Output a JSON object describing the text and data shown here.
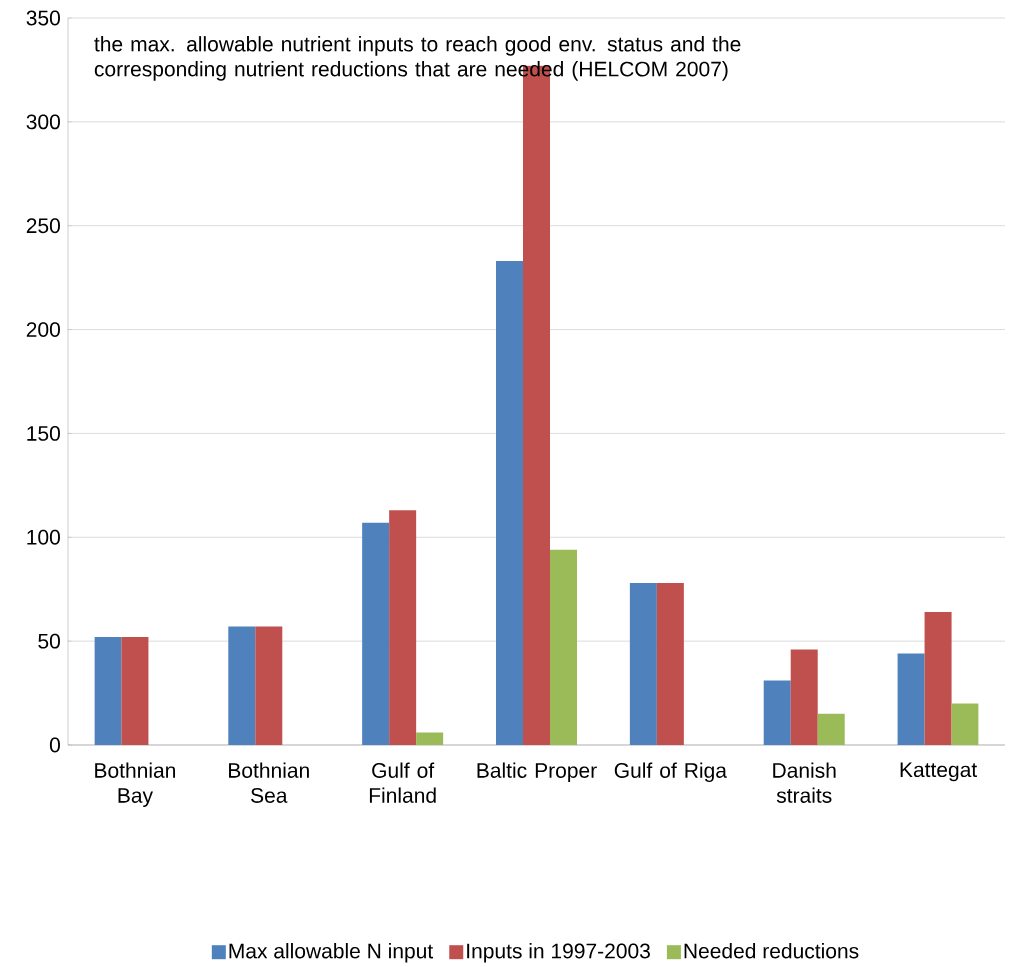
{
  "chart_data": {
    "type": "bar",
    "annotations": [
      "the max. allowable nutrient inputs to reach good env. status and the corresponding nutrient reductions that are needed (HELCOM 2007)"
    ],
    "categories": [
      "Bothnian Bay",
      "Bothnian Sea",
      "Gulf of Finland",
      "Baltic Proper",
      "Gulf of Riga",
      "Danish straits",
      "Kattegat"
    ],
    "series": [
      {
        "name": "Max allowable N input",
        "color": "#4f81bd",
        "values": [
          52,
          57,
          107,
          233,
          78,
          31,
          44
        ]
      },
      {
        "name": "Inputs in 1997-2003",
        "color": "#c0504d",
        "values": [
          52,
          57,
          113,
          327,
          78,
          46,
          64
        ]
      },
      {
        "name": "Needed reductions",
        "color": "#9bbb59",
        "values": [
          0,
          0,
          6,
          94,
          0,
          15,
          20
        ]
      }
    ],
    "ylim": [
      0,
      350
    ],
    "yticks": [
      0,
      50,
      100,
      150,
      200,
      250,
      300,
      350
    ],
    "grid": "y",
    "legend": "bottom"
  }
}
